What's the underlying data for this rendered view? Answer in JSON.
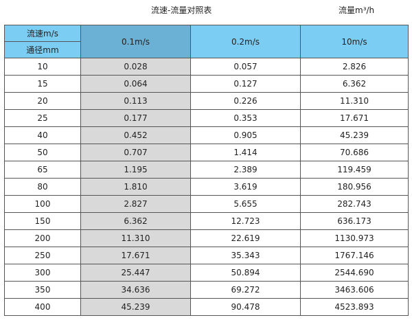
{
  "title": "流速-流量对照表",
  "unit": "流量m³/h",
  "header": {
    "velocity_label": "流速m/s",
    "diameter_label": "通径mm",
    "columns": [
      "0.1m/s",
      "0.2m/s",
      "10m/s"
    ]
  },
  "colors": {
    "header": "#7ccdf4",
    "selected_header": "#6bb1d5",
    "selected_column": "#d9d9d9"
  },
  "rows": [
    [
      "10",
      "0.028",
      "0.057",
      "2.826"
    ],
    [
      "15",
      "0.064",
      "0.127",
      "6.362"
    ],
    [
      "20",
      "0.113",
      "0.226",
      "11.310"
    ],
    [
      "25",
      "0.177",
      "0.353",
      "17.671"
    ],
    [
      "40",
      "0.452",
      "0.905",
      "45.239"
    ],
    [
      "50",
      "0.707",
      "1.414",
      "70.686"
    ],
    [
      "65",
      "1.195",
      "2.389",
      "119.459"
    ],
    [
      "80",
      "1.810",
      "3.619",
      "180.956"
    ],
    [
      "100",
      "2.827",
      "5.655",
      "282.743"
    ],
    [
      "150",
      "6.362",
      "12.723",
      "636.173"
    ],
    [
      "200",
      "11.310",
      "22.619",
      "1130.973"
    ],
    [
      "250",
      "17.671",
      "35.343",
      "1767.146"
    ],
    [
      "300",
      "25.447",
      "50.894",
      "2544.690"
    ],
    [
      "350",
      "34.636",
      "69.272",
      "3463.606"
    ],
    [
      "400",
      "45.239",
      "90.478",
      "4523.893"
    ]
  ]
}
